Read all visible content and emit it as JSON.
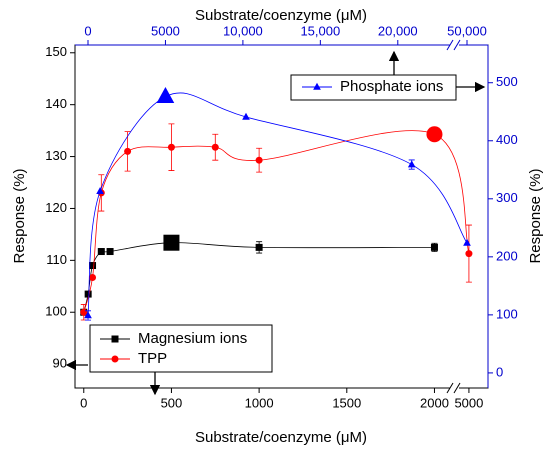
{
  "chart_data": {
    "type": "line",
    "xlabel": "Substrate/coenzyme (μM)",
    "x2label": "Substrate/coenzyme (μM)",
    "ylabel": "Response (%)",
    "y2label": "Response (%)",
    "xlim": [
      -50,
      5240
    ],
    "xbreak": [
      2100,
      4850
    ],
    "xticks": [
      0,
      500,
      1000,
      1500,
      2000,
      5000
    ],
    "x2lim": [
      -840,
      52100
    ],
    "x2break": [
      23500,
      49000
    ],
    "x2ticks": [
      0,
      5000,
      {
        "value": 10000,
        "label": "10,000"
      },
      {
        "value": 15000,
        "label": "15,000"
      },
      {
        "value": 20000,
        "label": "20,000"
      },
      {
        "value": 50000,
        "label": "50,000"
      }
    ],
    "ylim": [
      85.4,
      151.5
    ],
    "yticks": [
      90,
      100,
      110,
      120,
      130,
      140,
      150
    ],
    "y2lim": [
      -26,
      565
    ],
    "y2ticks": [
      0,
      100,
      200,
      300,
      400,
      500
    ],
    "series": [
      {
        "name": "Magnesium ions",
        "color": "#000000",
        "marker": "square",
        "large_marker_index": 5,
        "x": [
          0,
          25,
          50,
          100,
          150,
          500,
          1000,
          2000
        ],
        "values": [
          100,
          103.5,
          109,
          111.7,
          111.7,
          113.4,
          112.5,
          112.5
        ],
        "errors": [
          null,
          null,
          null,
          null,
          null,
          null,
          1.1,
          0.8
        ]
      },
      {
        "name": "TPP",
        "color": "#ff0000",
        "marker": "circle",
        "large_marker_index": 7,
        "x": [
          0,
          50,
          100,
          250,
          500,
          750,
          1000,
          2000,
          5000
        ],
        "values": [
          100,
          106.7,
          123,
          131,
          131.8,
          131.8,
          129.3,
          134.3,
          111.3
        ],
        "errors": [
          1.5,
          null,
          3.5,
          3.8,
          4.5,
          2.5,
          2.3,
          null,
          5.5
        ]
      },
      {
        "name": "Phosphate ions",
        "color": "#0000ff",
        "marker": "triangle",
        "large_marker_index": 2,
        "axis": "y2",
        "xaxis": "x2",
        "x": [
          0,
          780,
          5000,
          10200,
          20900,
          50000
        ],
        "values": [
          99,
          313,
          476,
          441,
          359,
          224
        ],
        "errors": [
          8,
          null,
          null,
          null,
          8,
          null
        ]
      }
    ]
  }
}
